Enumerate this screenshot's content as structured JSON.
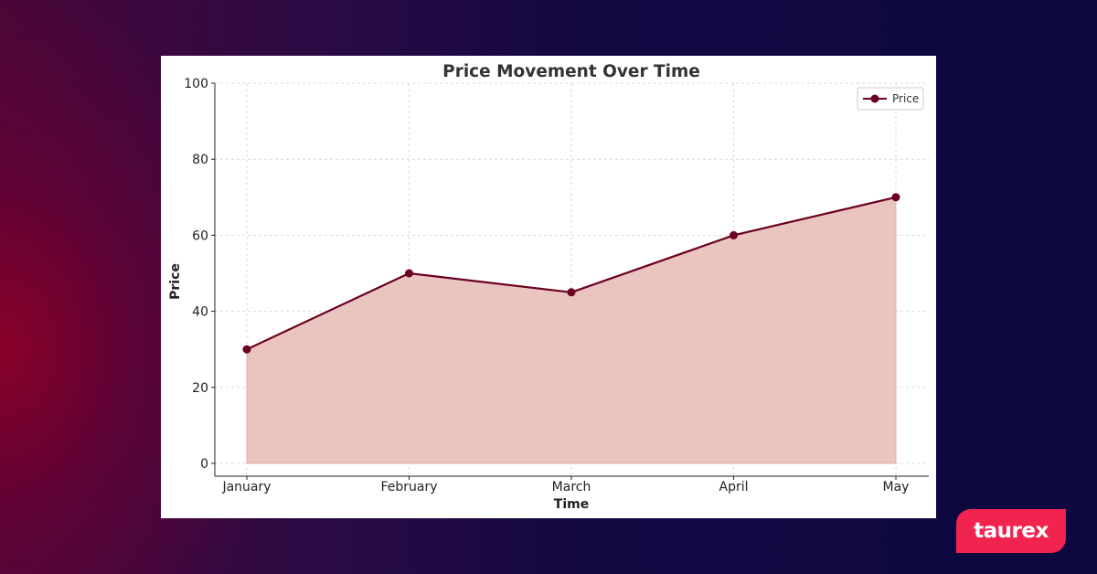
{
  "brand": {
    "logo_text": "taurex",
    "logo_color": "#f0244f"
  },
  "chart_data": {
    "type": "area",
    "title": "Price Movement Over Time",
    "xlabel": "Time",
    "ylabel": "Price",
    "categories": [
      "January",
      "February",
      "March",
      "April",
      "May"
    ],
    "series": [
      {
        "name": "Price",
        "values": [
          30,
          50,
          45,
          60,
          70
        ],
        "line_color": "#6b0020",
        "fill_color": "#eac4bf"
      }
    ],
    "ylim": [
      0,
      100
    ],
    "yticks": [
      0,
      20,
      40,
      60,
      80,
      100
    ],
    "grid": true,
    "legend_position": "top-right"
  }
}
